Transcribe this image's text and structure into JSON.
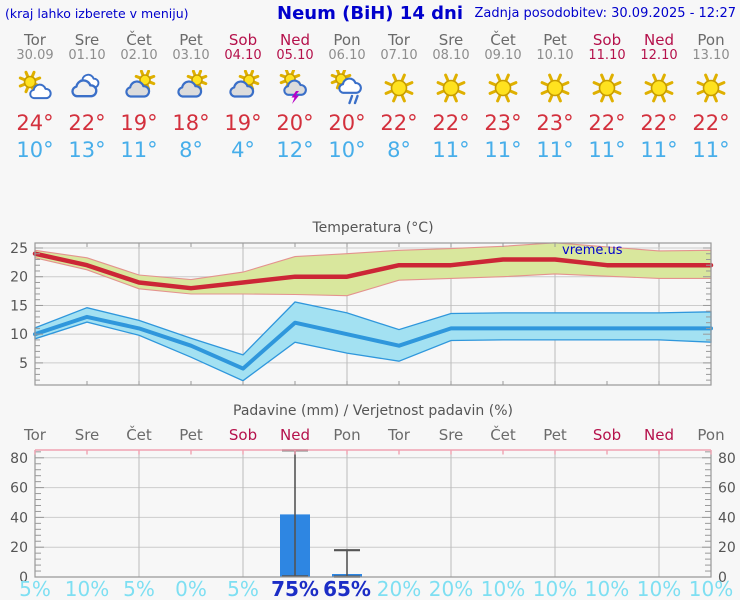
{
  "header": {
    "left_note": "(kraj lahko izberete v meniju)",
    "title": "Neum (BiH) 14 dni",
    "updated": "Zadnja posodobitev: 30.09.2025 - 12:27"
  },
  "watermark": "vreme.us",
  "colors": {
    "link_blue": "#0000cc",
    "day_gray": "#6a6a6a",
    "weekend_red": "#b5114b",
    "high_red": "#d3303d",
    "low_blue": "#47aeea",
    "temp_max_line": "#cc2636",
    "temp_max_band": "#d9e79d",
    "temp_max_band_edge": "#e4938e",
    "temp_min_line": "#2f97dc",
    "temp_min_band": "#a3e1f2",
    "precip_bar": "#2e86e2",
    "whisker": "#555555",
    "pct_cyan": "#7edff2",
    "pct_dark_blue": "#1b2dc6",
    "top_axis_pink": "#f0a2b2"
  },
  "days": [
    {
      "name": "Tor",
      "date": "30.09",
      "weekend": false,
      "icon": "partly-sunny",
      "high": "24°",
      "low": "10°"
    },
    {
      "name": "Sre",
      "date": "01.10",
      "weekend": false,
      "icon": "cloudy",
      "high": "22°",
      "low": "13°"
    },
    {
      "name": "Čet",
      "date": "02.10",
      "weekend": false,
      "icon": "mostly-cloudy",
      "high": "19°",
      "low": "11°"
    },
    {
      "name": "Pet",
      "date": "03.10",
      "weekend": false,
      "icon": "mostly-cloudy",
      "high": "18°",
      "low": "8°"
    },
    {
      "name": "Sob",
      "date": "04.10",
      "weekend": true,
      "icon": "mostly-cloudy",
      "high": "19°",
      "low": "4°"
    },
    {
      "name": "Ned",
      "date": "05.10",
      "weekend": true,
      "icon": "thunder",
      "high": "20°",
      "low": "12°"
    },
    {
      "name": "Pon",
      "date": "06.10",
      "weekend": false,
      "icon": "rain",
      "high": "20°",
      "low": "10°"
    },
    {
      "name": "Tor",
      "date": "07.10",
      "weekend": false,
      "icon": "sunny",
      "high": "22°",
      "low": "8°"
    },
    {
      "name": "Sre",
      "date": "08.10",
      "weekend": false,
      "icon": "sunny",
      "high": "22°",
      "low": "11°"
    },
    {
      "name": "Čet",
      "date": "09.10",
      "weekend": false,
      "icon": "sunny",
      "high": "23°",
      "low": "11°"
    },
    {
      "name": "Pet",
      "date": "10.10",
      "weekend": false,
      "icon": "sunny",
      "high": "23°",
      "low": "11°"
    },
    {
      "name": "Sob",
      "date": "11.10",
      "weekend": true,
      "icon": "sunny",
      "high": "22°",
      "low": "11°"
    },
    {
      "name": "Ned",
      "date": "12.10",
      "weekend": true,
      "icon": "sunny",
      "high": "22°",
      "low": "11°"
    },
    {
      "name": "Pon",
      "date": "13.10",
      "weekend": false,
      "icon": "sunny",
      "high": "22°",
      "low": "11°"
    }
  ],
  "chart_data": [
    {
      "type": "line",
      "title": "Temperatura (°C)",
      "categories": [
        "Tor",
        "Sre",
        "Čet",
        "Pet",
        "Sob",
        "Ned",
        "Pon",
        "Tor",
        "Sre",
        "Čet",
        "Pet",
        "Sob",
        "Ned",
        "Pon"
      ],
      "ylim": [
        1,
        26
      ],
      "yticks": [
        5,
        10,
        15,
        20,
        25
      ],
      "grid": "on",
      "legend": "none",
      "series": [
        {
          "name": "T max",
          "values": [
            24,
            22,
            19,
            18,
            19,
            20,
            20,
            22,
            22,
            23,
            23,
            22,
            22,
            22
          ]
        },
        {
          "name": "T max razpon zgoraj",
          "values": [
            24.6,
            23.3,
            20.3,
            19.5,
            20.8,
            23.5,
            24,
            24.6,
            24.9,
            25.3,
            25.9,
            25.2,
            24.5,
            24.6
          ]
        },
        {
          "name": "T max razpon spodaj",
          "values": [
            23.3,
            21.2,
            17.9,
            17,
            17,
            16.9,
            16.7,
            19.4,
            19.7,
            20,
            20.5,
            20.1,
            19.7,
            19.7
          ]
        },
        {
          "name": "T min",
          "values": [
            10,
            13,
            11,
            8,
            4,
            12,
            10,
            8,
            11,
            11,
            11,
            11,
            11,
            11
          ]
        },
        {
          "name": "T min razpon zgoraj",
          "values": [
            11.1,
            14.6,
            12.4,
            9.3,
            6.4,
            15.6,
            13.7,
            10.8,
            13.6,
            13.7,
            13.7,
            13.7,
            13.7,
            13.9
          ]
        },
        {
          "name": "T min razpon spodaj",
          "values": [
            9.2,
            12.1,
            9.8,
            6,
            1.9,
            8.6,
            6.7,
            5.3,
            8.9,
            9,
            9,
            9,
            9,
            8.6
          ]
        }
      ]
    },
    {
      "type": "bar",
      "title": "Padavine (mm) / Verjetnost padavin (%)",
      "categories": [
        "Tor",
        "Sre",
        "Čet",
        "Pet",
        "Sob",
        "Ned",
        "Pon",
        "Tor",
        "Sre",
        "Čet",
        "Pet",
        "Sob",
        "Ned",
        "Pon"
      ],
      "values_mm": [
        0,
        0,
        0,
        0,
        0,
        42,
        2,
        0,
        0,
        0,
        0,
        0,
        0,
        0
      ],
      "whisker_max_mm": [
        0,
        0,
        0,
        0,
        0,
        85,
        18,
        0,
        0,
        0,
        0,
        0,
        0,
        0
      ],
      "whisker_min_mm": [
        0,
        0,
        0,
        0,
        0,
        0.5,
        0.3,
        0,
        0,
        0,
        0,
        0,
        0,
        0
      ],
      "probability_pct": [
        "5%",
        "10%",
        "5%",
        "0%",
        "5%",
        "75%",
        "65%",
        "20%",
        "20%",
        "10%",
        "10%",
        "10%",
        "10%",
        "10%"
      ],
      "ylim": [
        0,
        80
      ],
      "yticks": [
        0,
        20,
        40,
        60,
        80
      ],
      "grid": "on"
    }
  ]
}
